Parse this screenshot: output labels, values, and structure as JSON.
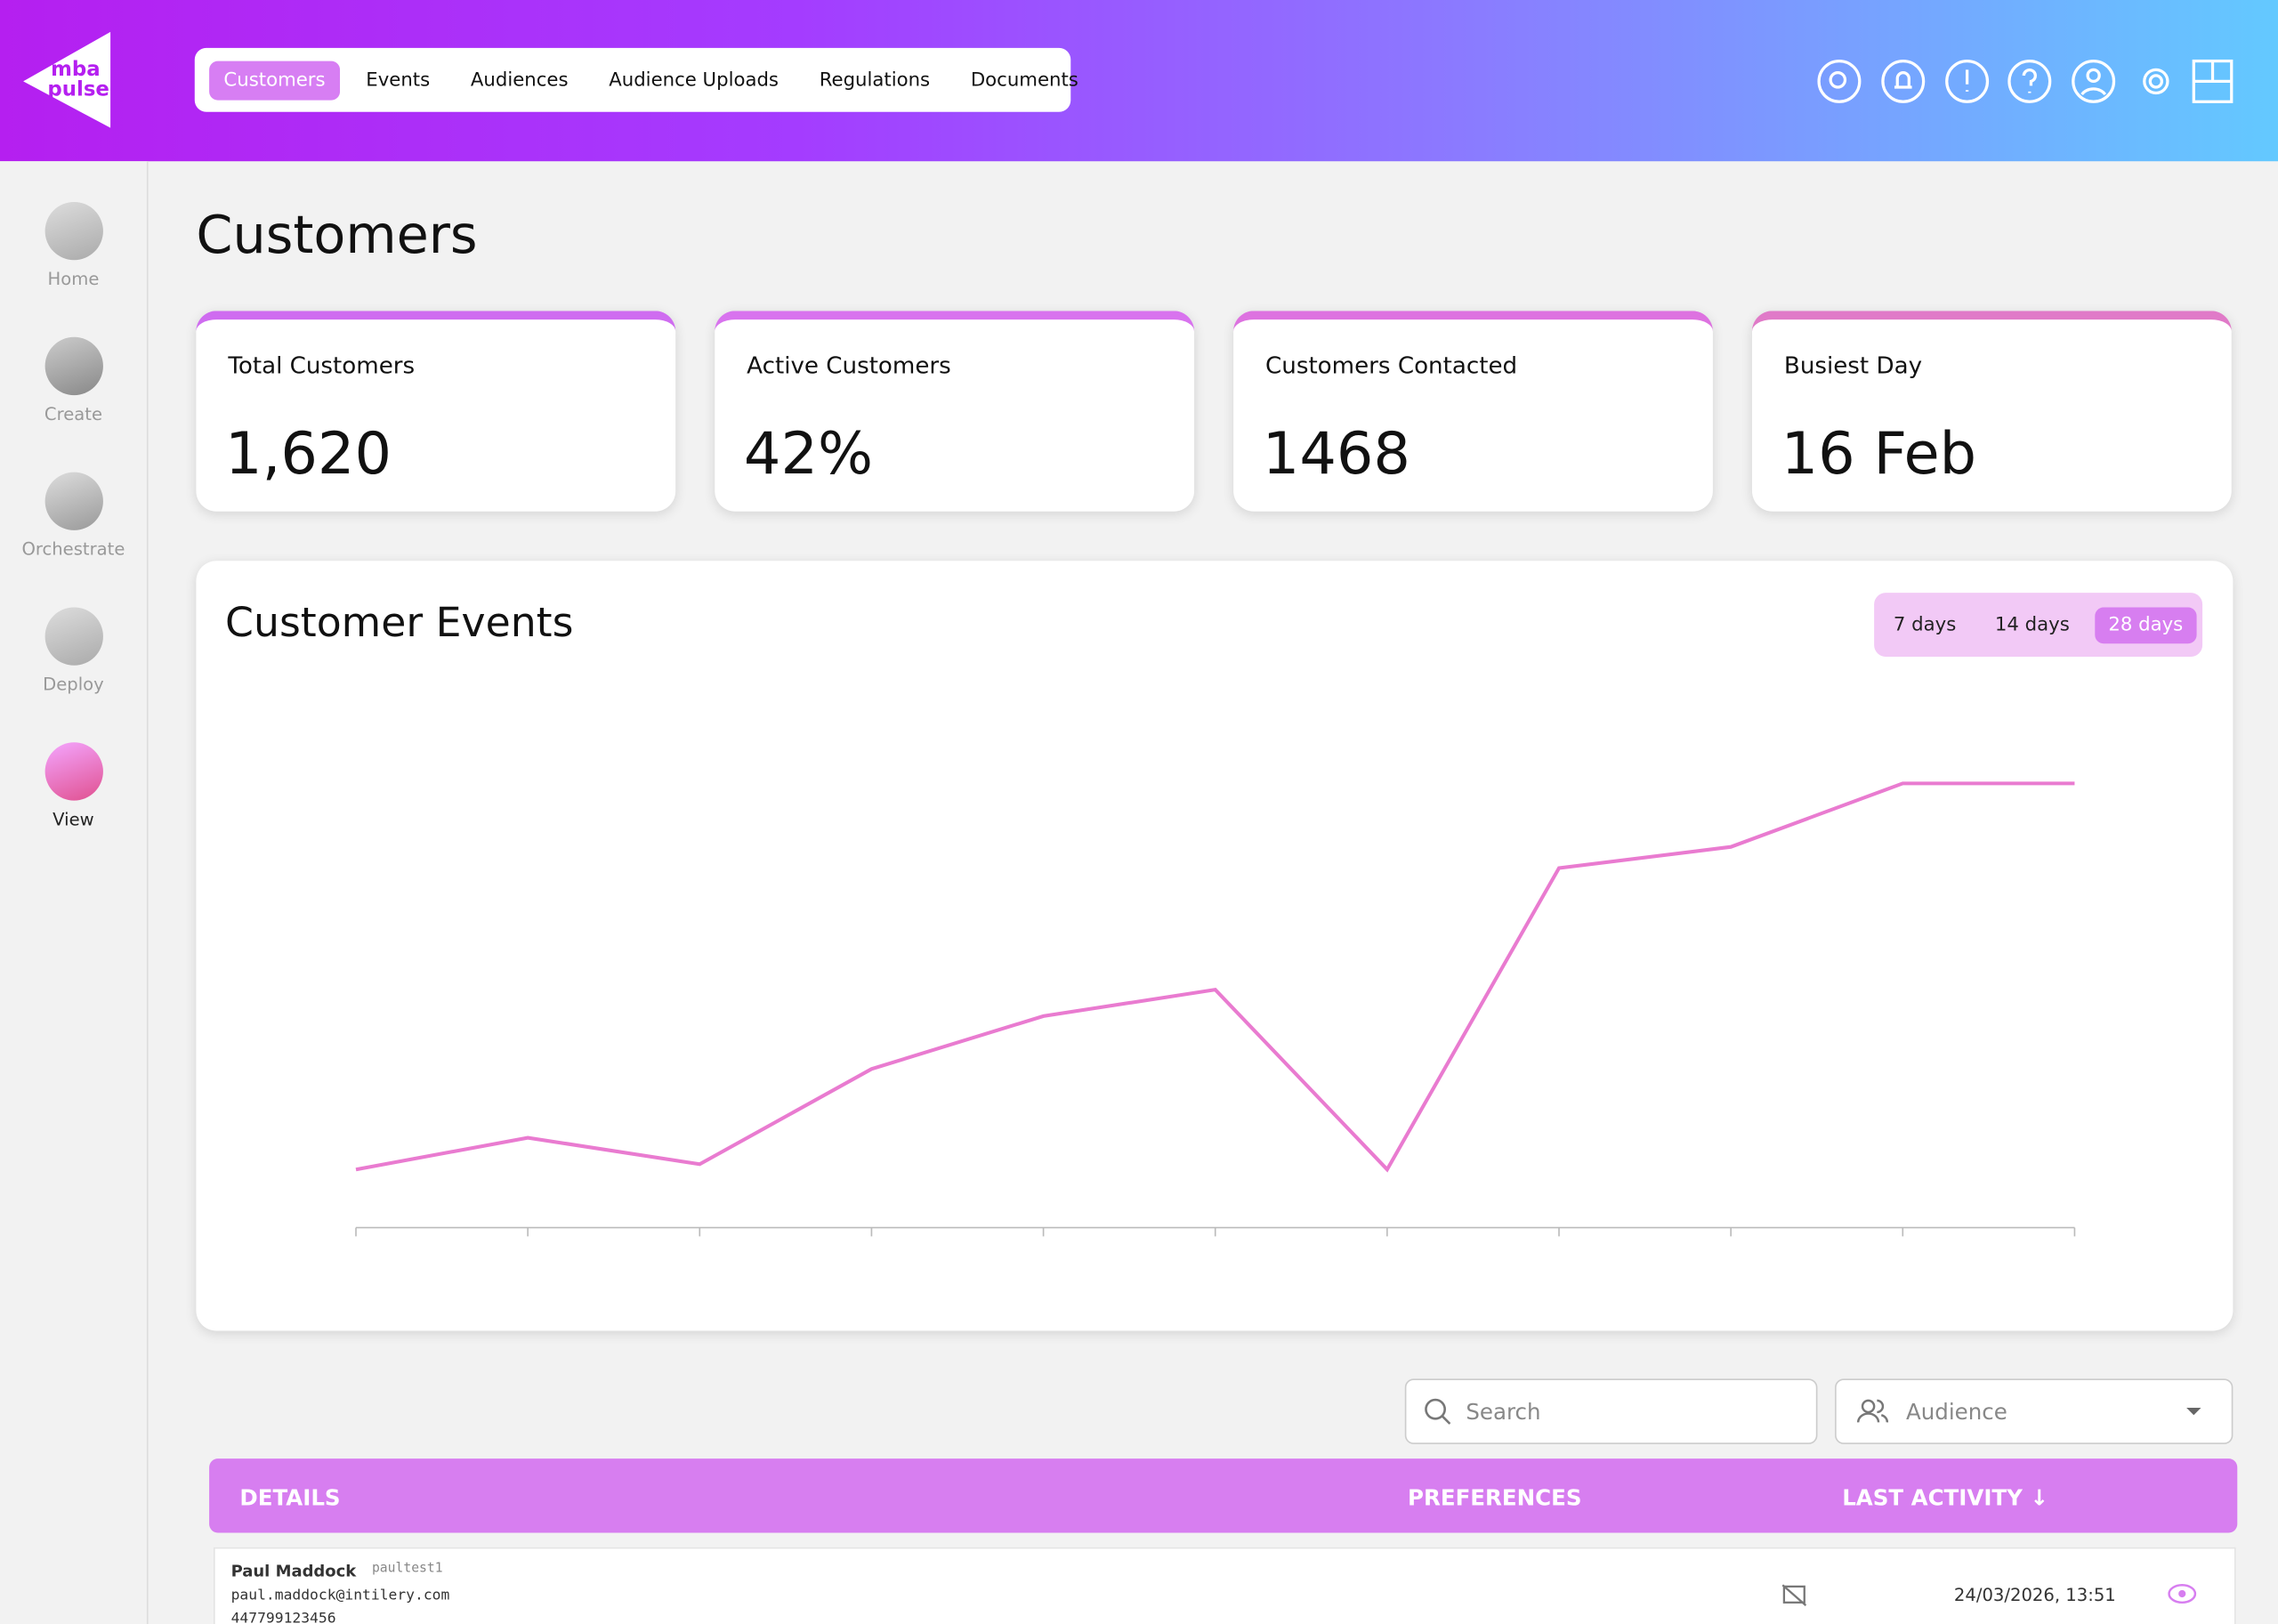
{
  "header": {
    "logo": "mba pulse",
    "nav": [
      "Customers",
      "Events",
      "Audiences",
      "Audience Uploads",
      "Regulations",
      "Documents"
    ]
  },
  "sidebar": [
    "Home",
    "Create",
    "Orchestrate",
    "Deploy",
    "View"
  ],
  "page_title": "Customers",
  "kpis": [
    {
      "label": "Total Customers",
      "value": "1,620"
    },
    {
      "label": "Active Customers",
      "value": "42%"
    },
    {
      "label": "Customers Contacted",
      "value": "1468"
    },
    {
      "label": "Busiest Day",
      "value": "16 Feb"
    }
  ],
  "range_options": [
    "7 days",
    "14 days",
    "28 days"
  ],
  "chart_data": {
    "type": "line",
    "title": "Customer Events",
    "categories": [
      null,
      null,
      null,
      null,
      null,
      null,
      null,
      null,
      null,
      null,
      null
    ],
    "series": [
      {
        "color": "#e97bd0",
        "values": [
          11,
          17,
          12,
          30,
          40,
          45,
          11,
          68,
          72,
          84,
          84
        ]
      }
    ],
    "ylim": [
      0,
      100
    ]
  },
  "filters": {
    "search": "Search",
    "audience": "Audience"
  },
  "table": {
    "headers": [
      "DETAILS",
      "PREFERENCES",
      "LAST ACTIVITY ↓"
    ],
    "rows": [
      {
        "name": "Paul Maddock",
        "id": "paultest1",
        "email": "paul.maddock@intilery.com",
        "phone": "447799123456",
        "last_activity": "24/03/2026, 13:51"
      }
    ]
  }
}
